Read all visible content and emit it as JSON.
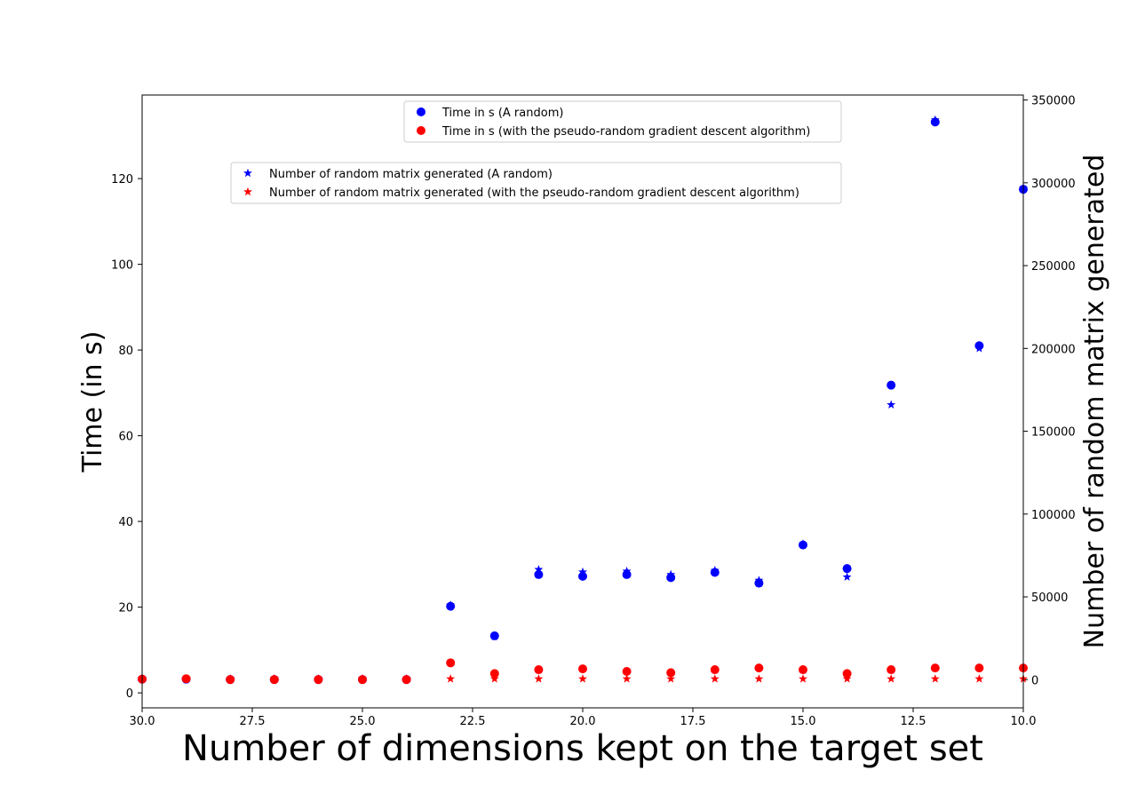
{
  "chart_data": {
    "type": "scatter",
    "xlabel": "Number of dimensions kept on the target set",
    "ylabel_left": "Time (in s)",
    "ylabel_right": "Number of random matrix generated",
    "x_axis": {
      "range": [
        30,
        10
      ],
      "ticks": [
        "30.0",
        "27.5",
        "25.0",
        "22.5",
        "20.0",
        "17.5",
        "15.0",
        "12.5",
        "10.0"
      ],
      "inverted": true
    },
    "y_left_axis": {
      "range": [
        -3.5,
        139.5
      ],
      "ticks": [
        "0",
        "20",
        "40",
        "60",
        "80",
        "100",
        "120"
      ]
    },
    "y_right_axis": {
      "range": [
        -17000,
        353000
      ],
      "ticks": [
        "0",
        "50000",
        "100000",
        "150000",
        "200000",
        "250000",
        "300000",
        "350000"
      ]
    },
    "x": [
      30,
      29,
      28,
      27,
      26,
      25,
      24,
      23,
      22,
      21,
      20,
      19,
      18,
      17,
      16,
      15,
      14,
      13,
      12,
      11,
      10
    ],
    "series_time": [
      {
        "name": "Time in s (A random)",
        "color": "#0000ff",
        "marker": "circle",
        "values": [
          3.2,
          3.2,
          3.1,
          3.1,
          3.1,
          3.1,
          3.1,
          20.2,
          13.3,
          27.6,
          27.2,
          27.6,
          26.9,
          28.1,
          25.6,
          34.5,
          29.0,
          71.8,
          133.2,
          81.0,
          117.5
        ]
      },
      {
        "name": "Time in s (with the pseudo-random gradient descent algorithm)",
        "color": "#ff0000",
        "marker": "circle",
        "values": [
          3.2,
          3.3,
          3.1,
          3.1,
          3.1,
          3.1,
          3.1,
          7.0,
          4.5,
          5.4,
          5.6,
          5.0,
          4.7,
          5.4,
          5.8,
          5.4,
          4.5,
          5.4,
          5.8,
          5.8,
          5.8
        ]
      }
    ],
    "series_count": [
      {
        "name": "Number of random matrix generated (A random)",
        "color": "#0000ff",
        "marker": "star",
        "values": [
          500,
          500,
          500,
          500,
          500,
          500,
          500,
          45000,
          26000,
          66500,
          65000,
          65500,
          63500,
          66000,
          60000,
          82000,
          62000,
          166000,
          338000,
          200000,
          297000
        ]
      },
      {
        "name": "Number of random matrix generated (with the pseudo-random gradient descent algorithm)",
        "color": "#ff0000",
        "marker": "star",
        "values": [
          500,
          500,
          500,
          500,
          500,
          500,
          500,
          500,
          500,
          500,
          500,
          500,
          500,
          500,
          500,
          500,
          500,
          500,
          500,
          500,
          500
        ]
      }
    ],
    "legend_time_placement": "top-center",
    "legend_count_placement": "upper-center",
    "grid": false
  }
}
